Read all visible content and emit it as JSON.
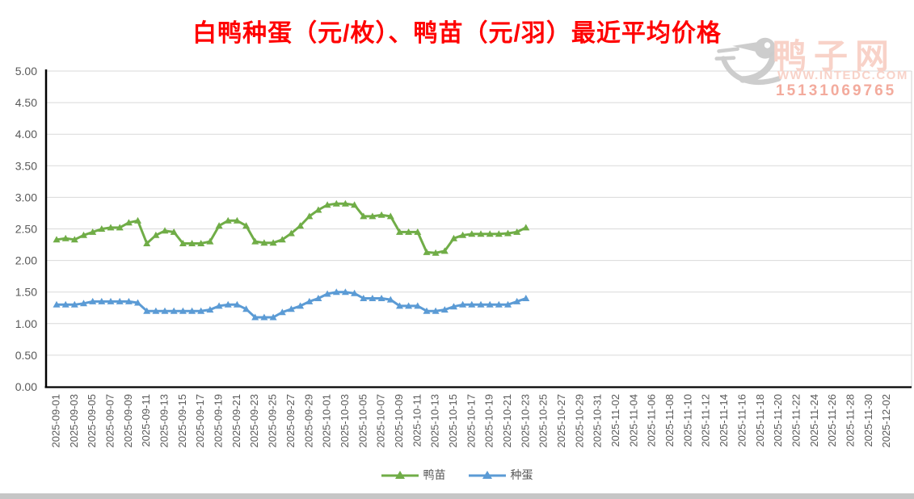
{
  "title": "白鸭种蛋（元/枚）、鸭苗（元/羽）最近平均价格",
  "watermark": {
    "brand": "鸭子网",
    "website": "WWW.INTEDC.COM",
    "phone": "15131069765"
  },
  "colors": {
    "title": "#ff0000",
    "duckling_line": "#70ad47",
    "egg_line": "#5b9bd5",
    "axis_text": "#595959",
    "gridline": "#d9d9d9",
    "axis_line": "#000000",
    "watermark_text": "#f8d2c8",
    "watermark_phone": "#f3ab9d",
    "watermark_logo": "#cbcbcb"
  },
  "chart_data": {
    "type": "line",
    "title": "白鸭种蛋（元/枚）、鸭苗（元/羽）最近平均价格",
    "xlabel": "",
    "ylabel": "",
    "ylim": [
      0,
      5
    ],
    "ytick_labels": [
      "0.00",
      "0.50",
      "1.00",
      "1.50",
      "2.00",
      "2.50",
      "3.00",
      "3.50",
      "4.00",
      "4.50",
      "5.00"
    ],
    "grid": true,
    "legend_position": "bottom",
    "marker": "triangle-up",
    "x_tick_labels": [
      "2025-09-01",
      "2025-09-03",
      "2025-09-05",
      "2025-09-07",
      "2025-09-09",
      "2025-09-11",
      "2025-09-13",
      "2025-09-15",
      "2025-09-17",
      "2025-09-19",
      "2025-09-21",
      "2025-09-23",
      "2025-09-25",
      "2025-09-27",
      "2025-09-29",
      "2025-10-01",
      "2025-10-03",
      "2025-10-05",
      "2025-10-07",
      "2025-10-09",
      "2025-10-11",
      "2025-10-13",
      "2025-10-15",
      "2025-10-17",
      "2025-10-19",
      "2025-10-21",
      "2025-10-23",
      "2025-10-25",
      "2025-10-27",
      "2025-10-29",
      "2025-10-31",
      "2025-11-02",
      "2025-11-04",
      "2025-11-06",
      "2025-11-08",
      "2025-11-10",
      "2025-11-12",
      "2025-11-14",
      "2025-11-16",
      "2025-11-18",
      "2025-11-20",
      "2025-11-22",
      "2025-11-24",
      "2025-11-26",
      "2025-11-28",
      "2025-11-30",
      "2025-12-02"
    ],
    "x": [
      "2025-09-01",
      "2025-09-02",
      "2025-09-03",
      "2025-09-04",
      "2025-09-05",
      "2025-09-06",
      "2025-09-07",
      "2025-09-08",
      "2025-09-09",
      "2025-09-10",
      "2025-09-11",
      "2025-09-12",
      "2025-09-13",
      "2025-09-14",
      "2025-09-15",
      "2025-09-16",
      "2025-09-17",
      "2025-09-18",
      "2025-09-19",
      "2025-09-20",
      "2025-09-21",
      "2025-09-22",
      "2025-09-23",
      "2025-09-24",
      "2025-09-25",
      "2025-09-26",
      "2025-09-27",
      "2025-09-28",
      "2025-09-29",
      "2025-09-30",
      "2025-10-01",
      "2025-10-02",
      "2025-10-03",
      "2025-10-04",
      "2025-10-05",
      "2025-10-06",
      "2025-10-07",
      "2025-10-08",
      "2025-10-09",
      "2025-10-10",
      "2025-10-11",
      "2025-10-12",
      "2025-10-13",
      "2025-10-14",
      "2025-10-15",
      "2025-10-16",
      "2025-10-17",
      "2025-10-18",
      "2025-10-19",
      "2025-10-20",
      "2025-10-21",
      "2025-10-22",
      "2025-10-23"
    ],
    "series": [
      {
        "name": "鸭苗",
        "color": "#70ad47",
        "values": [
          2.33,
          2.35,
          2.33,
          2.4,
          2.45,
          2.5,
          2.52,
          2.52,
          2.6,
          2.63,
          2.27,
          2.4,
          2.47,
          2.45,
          2.27,
          2.27,
          2.27,
          2.3,
          2.55,
          2.63,
          2.63,
          2.55,
          2.3,
          2.28,
          2.28,
          2.33,
          2.43,
          2.55,
          2.7,
          2.8,
          2.88,
          2.9,
          2.9,
          2.88,
          2.7,
          2.7,
          2.72,
          2.7,
          2.45,
          2.45,
          2.45,
          2.13,
          2.12,
          2.15,
          2.35,
          2.4,
          2.42,
          2.42,
          2.42,
          2.42,
          2.43,
          2.45,
          2.52
        ]
      },
      {
        "name": "种蛋",
        "color": "#5b9bd5",
        "values": [
          1.3,
          1.3,
          1.3,
          1.32,
          1.35,
          1.35,
          1.35,
          1.35,
          1.35,
          1.33,
          1.2,
          1.2,
          1.2,
          1.2,
          1.2,
          1.2,
          1.2,
          1.22,
          1.28,
          1.3,
          1.3,
          1.23,
          1.1,
          1.1,
          1.1,
          1.18,
          1.23,
          1.28,
          1.35,
          1.4,
          1.47,
          1.5,
          1.5,
          1.48,
          1.4,
          1.4,
          1.4,
          1.38,
          1.28,
          1.28,
          1.28,
          1.2,
          1.2,
          1.22,
          1.27,
          1.3,
          1.3,
          1.3,
          1.3,
          1.3,
          1.3,
          1.35,
          1.4
        ]
      }
    ]
  }
}
